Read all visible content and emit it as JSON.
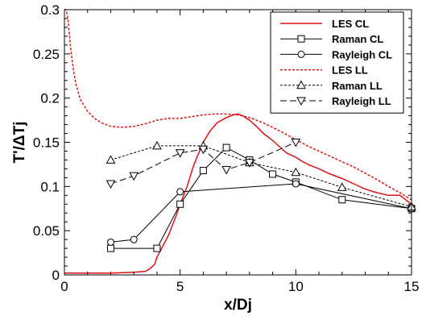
{
  "chart_data": {
    "type": "line",
    "title": "",
    "xlabel": "x/Dj",
    "ylabel": "T'/ΔTj",
    "xlim": [
      0,
      15
    ],
    "ylim": [
      0,
      0.3
    ],
    "xticks": [
      0,
      5,
      10,
      15
    ],
    "yticks": [
      0,
      0.05,
      0.1,
      0.15,
      0.2,
      0.25,
      0.3
    ],
    "xtick_labels": [
      "0",
      "5",
      "10",
      "15"
    ],
    "ytick_labels": [
      "0",
      "0.05",
      "0.1",
      "0.15",
      "0.2",
      "0.25",
      "0.3"
    ],
    "grid": false,
    "legend_position": "top-right",
    "series": [
      {
        "name": "LES CL",
        "color": "#dd1111",
        "dash": "solid",
        "marker": "none",
        "x": [
          0,
          1,
          2,
          3,
          3.5,
          3.7,
          3.9,
          4.0,
          4.2,
          4.5,
          4.8,
          5.0,
          5.3,
          5.6,
          6.0,
          6.3,
          6.6,
          7.0,
          7.3,
          7.5,
          7.7,
          8.0,
          8.3,
          8.6,
          9.0,
          9.3,
          9.6,
          10.0,
          10.3,
          10.6,
          11.0,
          11.5,
          12.0,
          12.5,
          13.0,
          13.5,
          14.0,
          14.5,
          15.0
        ],
        "y": [
          0.002,
          0.002,
          0.002,
          0.003,
          0.004,
          0.007,
          0.012,
          0.02,
          0.03,
          0.045,
          0.065,
          0.08,
          0.1,
          0.125,
          0.15,
          0.163,
          0.172,
          0.178,
          0.181,
          0.182,
          0.18,
          0.175,
          0.168,
          0.16,
          0.152,
          0.145,
          0.138,
          0.133,
          0.128,
          0.124,
          0.12,
          0.114,
          0.109,
          0.103,
          0.097,
          0.093,
          0.09,
          0.09,
          0.08
        ]
      },
      {
        "name": "Raman CL",
        "color": "#000000",
        "dash": "solid",
        "marker": "square",
        "x": [
          2,
          4,
          5,
          6,
          7,
          8,
          9,
          10,
          12,
          15
        ],
        "y": [
          0.03,
          0.03,
          0.08,
          0.118,
          0.144,
          0.13,
          0.114,
          0.105,
          0.085,
          0.075
        ]
      },
      {
        "name": "Rayleigh CL",
        "color": "#000000",
        "dash": "solid",
        "marker": "circle",
        "x": [
          2,
          3,
          5,
          10,
          15
        ],
        "y": [
          0.037,
          0.04,
          0.094,
          0.103,
          0.075
        ]
      },
      {
        "name": "LES LL",
        "color": "#dd1111",
        "dash": "short",
        "marker": "none",
        "x": [
          0,
          0.08,
          0.15,
          0.22,
          0.3,
          0.4,
          0.5,
          0.7,
          1.0,
          1.3,
          1.6,
          2.0,
          2.5,
          3.0,
          3.5,
          4.0,
          4.5,
          5.0,
          5.5,
          6.0,
          6.5,
          7.0,
          7.5,
          8.0,
          8.5,
          9.0,
          9.5,
          10.0,
          10.5,
          11.0,
          11.5,
          12.0,
          12.5,
          13.0,
          13.5,
          14.0,
          14.5,
          15.0
        ],
        "y": [
          0.3,
          0.3,
          0.29,
          0.27,
          0.25,
          0.23,
          0.215,
          0.198,
          0.185,
          0.177,
          0.172,
          0.168,
          0.167,
          0.168,
          0.171,
          0.175,
          0.177,
          0.177,
          0.179,
          0.181,
          0.182,
          0.182,
          0.181,
          0.178,
          0.173,
          0.167,
          0.16,
          0.153,
          0.146,
          0.14,
          0.134,
          0.128,
          0.122,
          0.115,
          0.108,
          0.1,
          0.093,
          0.085
        ]
      },
      {
        "name": "Raman LL",
        "color": "#000000",
        "dash": "short",
        "marker": "triangle-up",
        "x": [
          2,
          4,
          6,
          8,
          10,
          12,
          15
        ],
        "y": [
          0.13,
          0.146,
          0.146,
          0.127,
          0.116,
          0.099,
          0.077
        ]
      },
      {
        "name": "Rayleigh LL",
        "color": "#000000",
        "dash": "long",
        "marker": "triangle-down",
        "x": [
          2,
          3,
          5,
          6,
          7,
          8,
          10
        ],
        "y": [
          0.103,
          0.112,
          0.138,
          0.142,
          0.119,
          0.127,
          0.15
        ]
      }
    ]
  }
}
